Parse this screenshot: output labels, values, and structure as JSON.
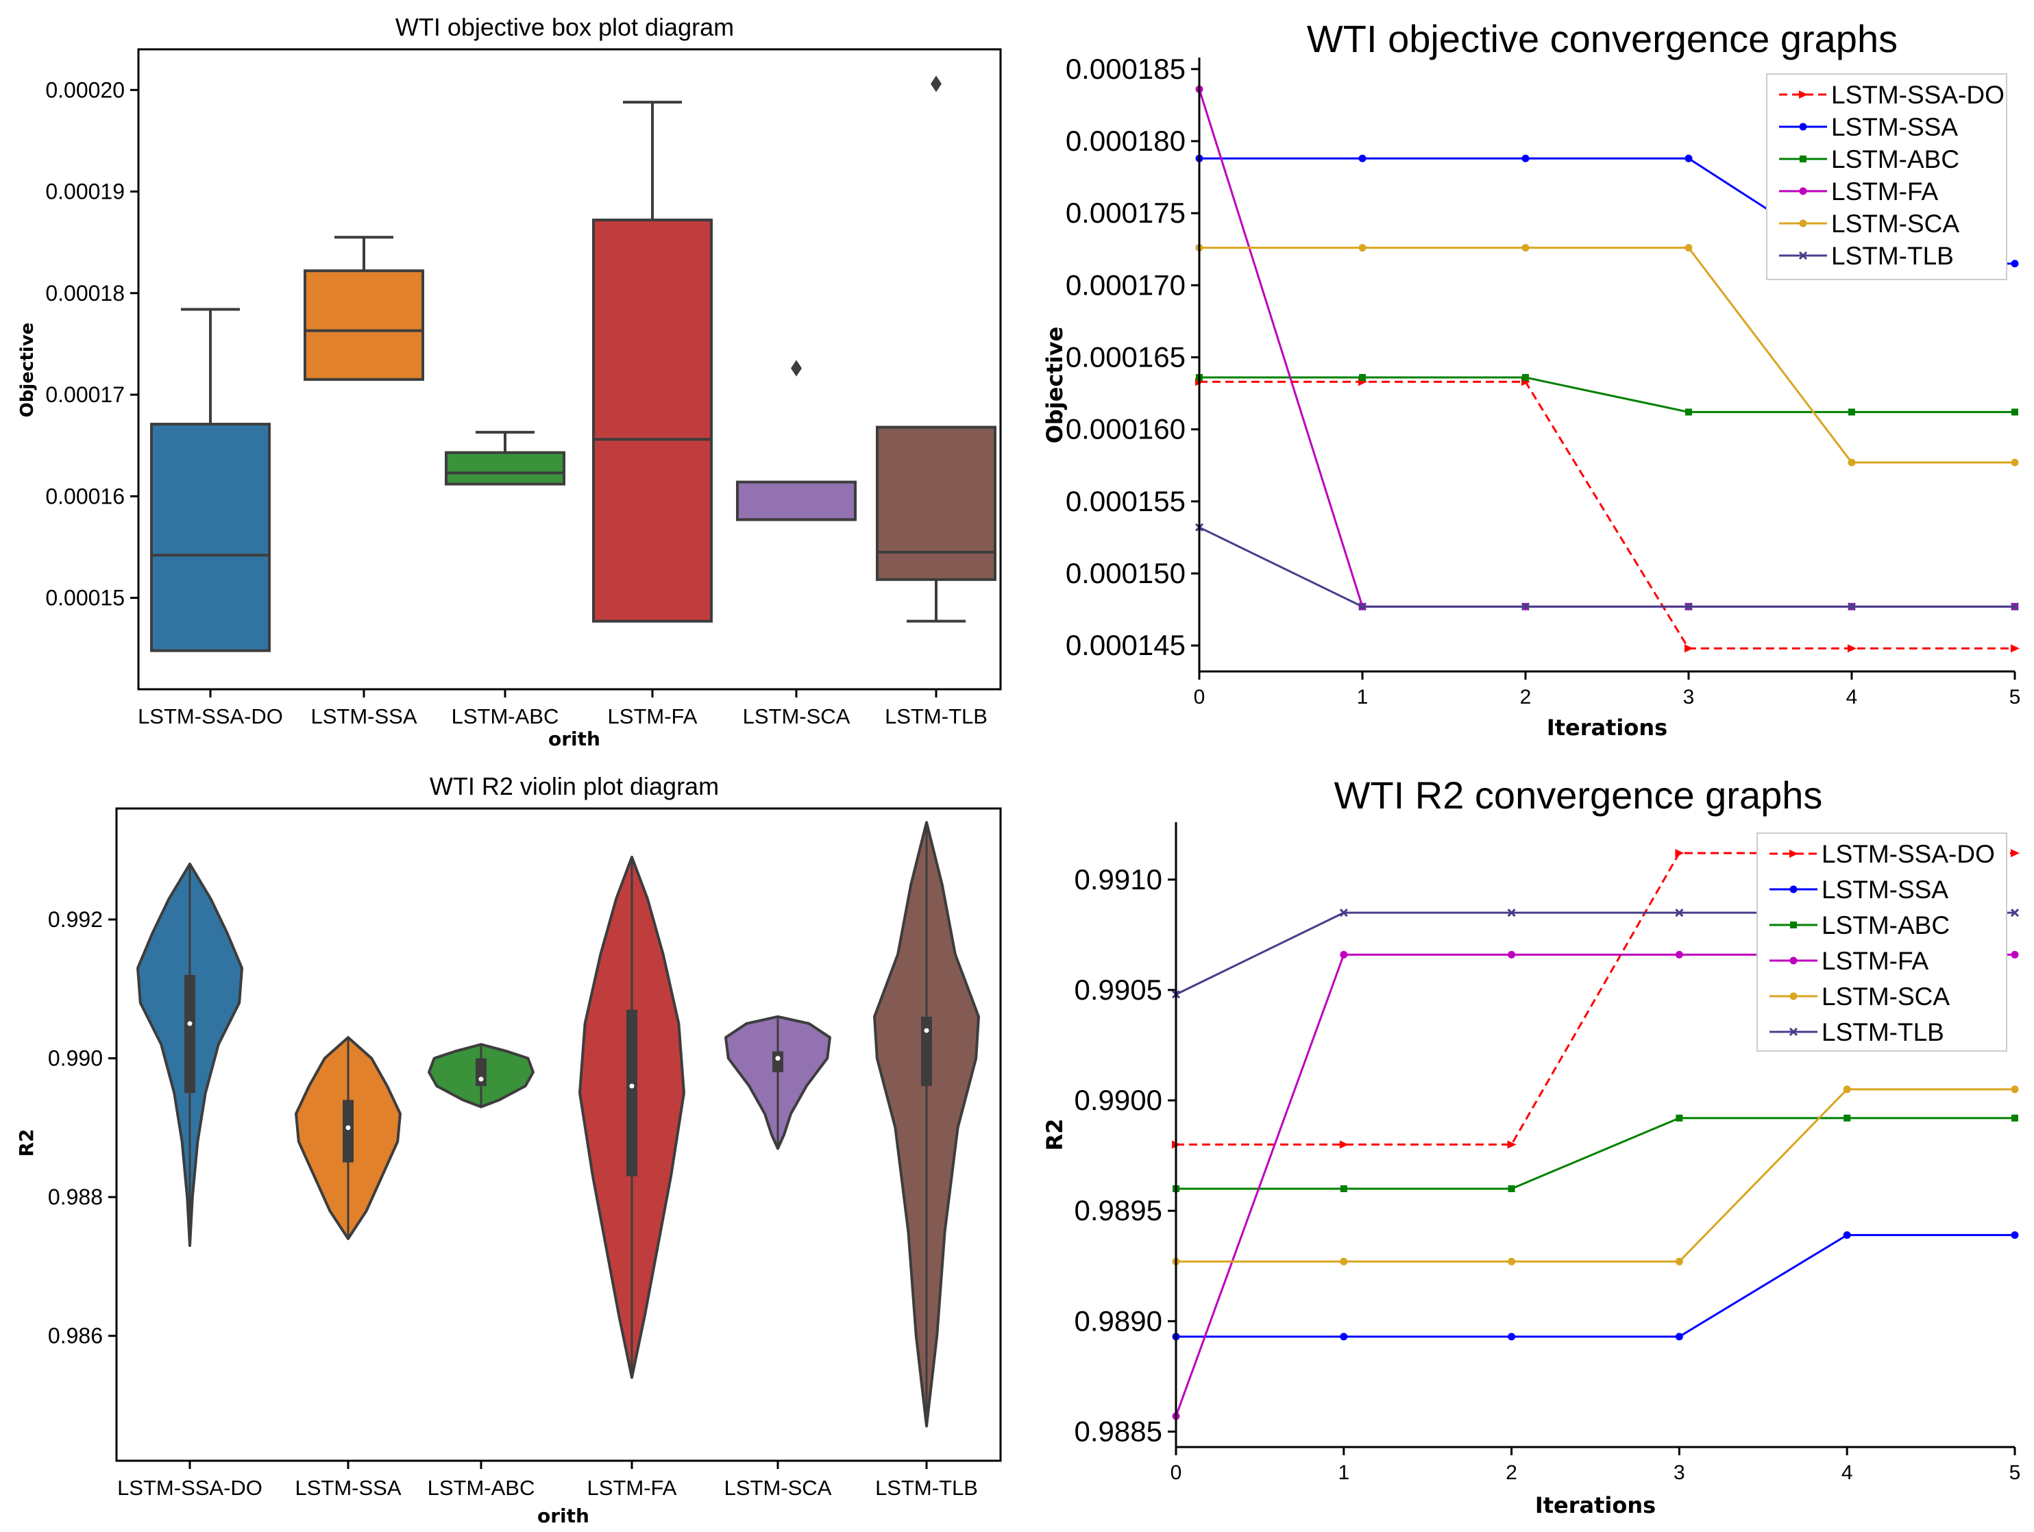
{
  "chart_data": [
    {
      "type": "box",
      "title": "WTI objective box plot diagram",
      "xlabel": "orith",
      "ylabel": "Objective",
      "ylim": [
        0.000141,
        0.000204
      ],
      "yticks": [
        0.00015,
        0.00016,
        0.00017,
        0.00018,
        0.00019,
        0.0002
      ],
      "ytick_labels": [
        "0.00015",
        "0.00016",
        "0.00017",
        "0.00018",
        "0.00019",
        "0.00020"
      ],
      "categories": [
        "LSTM-SSA-DO",
        "LSTM-SSA",
        "LSTM-ABC",
        "LSTM-FA",
        "LSTM-SCA",
        "LSTM-TLB"
      ],
      "boxes": [
        {
          "q1": 0.0001448,
          "median": 0.0001542,
          "q3": 0.0001671,
          "whisker_low": 0.0001448,
          "whisker_high": 0.0001784,
          "outliers": [],
          "color": "#3274a1"
        },
        {
          "q1": 0.0001715,
          "median": 0.0001763,
          "q3": 0.0001822,
          "whisker_low": 0.0001715,
          "whisker_high": 0.0001855,
          "outliers": [],
          "color": "#e1812c"
        },
        {
          "q1": 0.0001612,
          "median": 0.0001623,
          "q3": 0.0001643,
          "whisker_low": 0.0001612,
          "whisker_high": 0.0001663,
          "outliers": [],
          "color": "#3a923a"
        },
        {
          "q1": 0.0001477,
          "median": 0.0001656,
          "q3": 0.0001872,
          "whisker_low": 0.0001477,
          "whisker_high": 0.0001988,
          "outliers": [],
          "color": "#c03d3e"
        },
        {
          "q1": 0.0001577,
          "median": 0.0001577,
          "q3": 0.0001614,
          "whisker_low": 0.0001577,
          "whisker_high": 0.0001614,
          "outliers": [
            0.0001726
          ],
          "color": "#9372b2"
        },
        {
          "q1": 0.0001518,
          "median": 0.0001545,
          "q3": 0.0001668,
          "whisker_low": 0.0001477,
          "whisker_high": 0.0001668,
          "outliers": [
            0.0002006
          ],
          "color": "#845b53"
        }
      ]
    },
    {
      "type": "line",
      "title": "WTI  objective convergence graphs",
      "xlabel": "Iterations",
      "ylabel": "Objective",
      "xlim": [
        0,
        5
      ],
      "ylim": [
        0.0001432,
        0.0001858
      ],
      "x": [
        0,
        1,
        2,
        3,
        4,
        5
      ],
      "xtick_labels": [
        "0",
        "1",
        "2",
        "3",
        "4",
        "5"
      ],
      "yticks": [
        0.000145,
        0.00015,
        0.000155,
        0.00016,
        0.000165,
        0.00017,
        0.000175,
        0.00018,
        0.000185
      ],
      "ytick_labels": [
        "0.000145",
        "0.000150",
        "0.000155",
        "0.000160",
        "0.000165",
        "0.000170",
        "0.000175",
        "0.000180",
        "0.000185"
      ],
      "legend_position": "top-right",
      "series": [
        {
          "name": "LSTM-SSA-DO",
          "values": [
            0.0001633,
            0.0001633,
            0.0001633,
            0.0001448,
            0.0001448,
            0.0001448
          ],
          "color": "#ff0000",
          "dash": true,
          "marker": "tri"
        },
        {
          "name": "LSTM-SSA",
          "values": [
            0.0001788,
            0.0001788,
            0.0001788,
            0.0001788,
            0.0001715,
            0.0001715
          ],
          "color": "#0000ff",
          "dash": false,
          "marker": "circle"
        },
        {
          "name": "LSTM-ABC",
          "values": [
            0.0001636,
            0.0001636,
            0.0001636,
            0.0001612,
            0.0001612,
            0.0001612
          ],
          "color": "#008000",
          "dash": false,
          "marker": "square"
        },
        {
          "name": "LSTM-FA",
          "values": [
            0.0001836,
            0.0001477,
            0.0001477,
            0.0001477,
            0.0001477,
            0.0001477
          ],
          "color": "#bf00bf",
          "dash": false,
          "marker": "circle"
        },
        {
          "name": "LSTM-SCA",
          "values": [
            0.0001726,
            0.0001726,
            0.0001726,
            0.0001726,
            0.0001577,
            0.0001577
          ],
          "color": "#daa520",
          "dash": false,
          "marker": "circle"
        },
        {
          "name": "LSTM-TLB",
          "values": [
            0.0001532,
            0.0001477,
            0.0001477,
            0.0001477,
            0.0001477,
            0.0001477
          ],
          "color": "#483d8b",
          "dash": false,
          "marker": "x"
        }
      ]
    },
    {
      "type": "violin",
      "title": "WTI R2 violin plot diagram",
      "xlabel": "orith",
      "ylabel": "R2",
      "ylim": [
        0.9842,
        0.9936
      ],
      "yticks": [
        0.986,
        0.988,
        0.99,
        0.992
      ],
      "ytick_labels": [
        "0.986",
        "0.988",
        "0.990",
        "0.992"
      ],
      "categories": [
        "LSTM-SSA-DO",
        "LSTM-SSA",
        "LSTM-ABC",
        "LSTM-FA",
        "LSTM-SCA",
        "LSTM-TLB"
      ],
      "violins": [
        {
          "min": 0.9873,
          "max": 0.9928,
          "q1": 0.9895,
          "median": 0.9905,
          "q3": 0.9912,
          "color": "#3274a1",
          "profile": [
            [
              0.9873,
              0.0
            ],
            [
              0.988,
              0.05
            ],
            [
              0.9888,
              0.15
            ],
            [
              0.9895,
              0.3
            ],
            [
              0.9902,
              0.55
            ],
            [
              0.9908,
              0.95
            ],
            [
              0.9913,
              1.0
            ],
            [
              0.9918,
              0.72
            ],
            [
              0.9923,
              0.4
            ],
            [
              0.9928,
              0.0
            ]
          ]
        },
        {
          "min": 0.9874,
          "max": 0.9903,
          "q1": 0.9885,
          "median": 0.989,
          "q3": 0.9894,
          "color": "#e1812c",
          "profile": [
            [
              0.9874,
              0.0
            ],
            [
              0.9878,
              0.35
            ],
            [
              0.9883,
              0.65
            ],
            [
              0.9888,
              0.95
            ],
            [
              0.9892,
              1.0
            ],
            [
              0.9896,
              0.75
            ],
            [
              0.99,
              0.45
            ],
            [
              0.9903,
              0.0
            ]
          ]
        },
        {
          "min": 0.9893,
          "max": 0.9902,
          "q1": 0.9896,
          "median": 0.9897,
          "q3": 0.99,
          "color": "#3a923a",
          "profile": [
            [
              0.9893,
              0.0
            ],
            [
              0.9894,
              0.35
            ],
            [
              0.9896,
              0.85
            ],
            [
              0.9898,
              1.0
            ],
            [
              0.99,
              0.9
            ],
            [
              0.9901,
              0.5
            ],
            [
              0.9902,
              0.0
            ]
          ]
        },
        {
          "min": 0.9854,
          "max": 0.9929,
          "q1": 0.9883,
          "median": 0.9896,
          "q3": 0.9907,
          "color": "#c03d3e",
          "profile": [
            [
              0.9854,
              0.0
            ],
            [
              0.9863,
              0.25
            ],
            [
              0.9873,
              0.5
            ],
            [
              0.9883,
              0.75
            ],
            [
              0.9895,
              1.0
            ],
            [
              0.9905,
              0.9
            ],
            [
              0.9915,
              0.6
            ],
            [
              0.9923,
              0.3
            ],
            [
              0.9929,
              0.0
            ]
          ]
        },
        {
          "min": 0.9887,
          "max": 0.9906,
          "q1": 0.9898,
          "median": 0.99,
          "q3": 0.9901,
          "color": "#9372b2",
          "profile": [
            [
              0.9887,
              0.0
            ],
            [
              0.9889,
              0.12
            ],
            [
              0.9892,
              0.25
            ],
            [
              0.9896,
              0.55
            ],
            [
              0.99,
              0.95
            ],
            [
              0.9903,
              1.0
            ],
            [
              0.9905,
              0.6
            ],
            [
              0.9906,
              0.0
            ]
          ]
        },
        {
          "min": 0.9847,
          "max": 0.9934,
          "q1": 0.9896,
          "median": 0.9904,
          "q3": 0.9906,
          "color": "#845b53",
          "profile": [
            [
              0.9847,
              0.0
            ],
            [
              0.986,
              0.2
            ],
            [
              0.9875,
              0.35
            ],
            [
              0.989,
              0.6
            ],
            [
              0.99,
              0.95
            ],
            [
              0.9906,
              1.0
            ],
            [
              0.9915,
              0.55
            ],
            [
              0.9925,
              0.3
            ],
            [
              0.9934,
              0.0
            ]
          ]
        }
      ]
    },
    {
      "type": "line",
      "title": "WTI R2 convergence graphs",
      "xlabel": "Iterations",
      "ylabel": "R2",
      "xlim": [
        0,
        5
      ],
      "ylim": [
        0.98843,
        0.99126
      ],
      "x": [
        0,
        1,
        2,
        3,
        4,
        5
      ],
      "xtick_labels": [
        "0",
        "1",
        "2",
        "3",
        "4",
        "5"
      ],
      "yticks": [
        0.9885,
        0.989,
        0.9895,
        0.99,
        0.9905,
        0.991
      ],
      "ytick_labels": [
        "0.9885",
        "0.9890",
        "0.9895",
        "0.9900",
        "0.9905",
        "0.9910"
      ],
      "legend_position": "top-right",
      "series": [
        {
          "name": "LSTM-SSA-DO",
          "values": [
            0.9898,
            0.9898,
            0.9898,
            0.99112,
            0.99112,
            0.99112
          ],
          "color": "#ff0000",
          "dash": true,
          "marker": "tri"
        },
        {
          "name": "LSTM-SSA",
          "values": [
            0.98893,
            0.98893,
            0.98893,
            0.98893,
            0.98939,
            0.98939
          ],
          "color": "#0000ff",
          "dash": false,
          "marker": "circle"
        },
        {
          "name": "LSTM-ABC",
          "values": [
            0.9896,
            0.9896,
            0.9896,
            0.98992,
            0.98992,
            0.98992
          ],
          "color": "#008000",
          "dash": false,
          "marker": "square"
        },
        {
          "name": "LSTM-FA",
          "values": [
            0.98857,
            0.99066,
            0.99066,
            0.99066,
            0.99066,
            0.99066
          ],
          "color": "#bf00bf",
          "dash": false,
          "marker": "circle"
        },
        {
          "name": "LSTM-SCA",
          "values": [
            0.98927,
            0.98927,
            0.98927,
            0.98927,
            0.99005,
            0.99005
          ],
          "color": "#daa520",
          "dash": false,
          "marker": "circle"
        },
        {
          "name": "LSTM-TLB",
          "values": [
            0.99048,
            0.99085,
            0.99085,
            0.99085,
            0.99085,
            0.99085
          ],
          "color": "#483d8b",
          "dash": false,
          "marker": "x"
        }
      ]
    }
  ]
}
